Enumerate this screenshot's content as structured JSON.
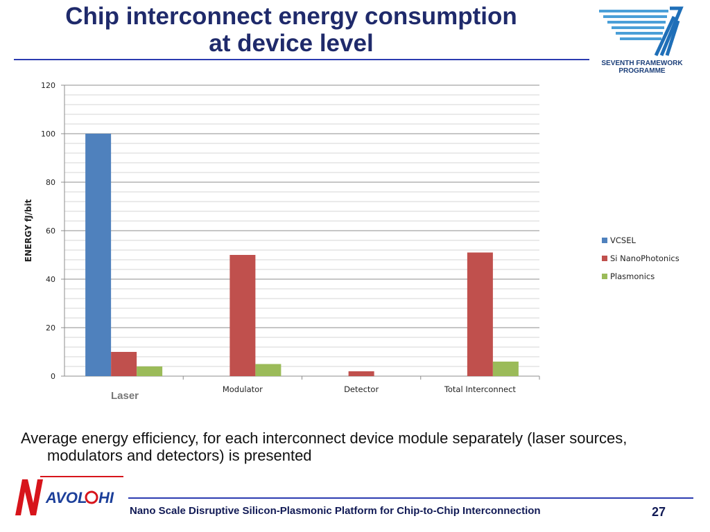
{
  "slide": {
    "title_line1": "Chip interconnect energy consumption",
    "title_line2": "at device level",
    "description": "Average energy efficiency, for each interconnect device module separately (laser sources, modulators and detectors) is presented",
    "footer": "Nano Scale Disruptive Silicon-Plasmonic Platform for Chip-to-Chip Interconnection",
    "page_number": "27",
    "fp7_logo_text": [
      "SEVENTH FRAMEWORK",
      "PROGRAMME"
    ],
    "navolchi_logo_text": "AVOL",
    "navolchi_logo_text2": "HI",
    "colors": {
      "title": "#1f2a6b",
      "rule": "#2b3bb0",
      "logo_red": "#d7141b",
      "logo_blue": "#1c3f9a"
    }
  },
  "chart_data": {
    "type": "bar",
    "categories": [
      "Laser",
      "Modulator",
      "Detector",
      "Total Interconnect"
    ],
    "series": [
      {
        "name": "VCSEL",
        "color": "#4f81bd",
        "values": [
          100,
          0,
          0,
          0
        ]
      },
      {
        "name": "Si NanoPhotonics",
        "color": "#c0504d",
        "values": [
          10,
          50,
          2,
          51
        ]
      },
      {
        "name": "Plasmonics",
        "color": "#9bbb59",
        "values": [
          4,
          5,
          0,
          6
        ]
      }
    ],
    "title": "",
    "xlabel": "",
    "ylabel": "ENERGY fJ/bit",
    "ylim": [
      0,
      120
    ],
    "yticks": [
      0,
      20,
      40,
      60,
      80,
      100,
      120
    ],
    "grid": true,
    "legend_position": "right"
  }
}
